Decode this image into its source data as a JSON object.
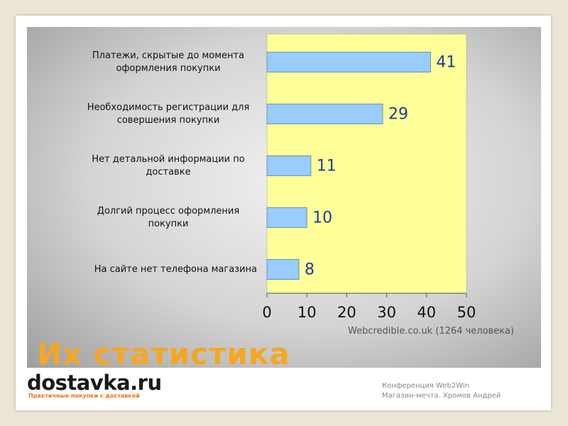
{
  "chart_data": {
    "type": "bar",
    "orientation": "horizontal",
    "title": "Их статистика",
    "source": "Webcredible.co.uk (1264 человека)",
    "categories": [
      "Платежи, скрытые до момента оформления покупки",
      "Необходимость регистрации для совершения покупки",
      "Нет детальной информации по доставке",
      "Долгий процесс оформления покупки",
      "На сайте нет телефона магазина"
    ],
    "values": [
      41,
      29,
      11,
      10,
      8
    ],
    "color": "#99ccff",
    "xlim": [
      0,
      50
    ],
    "xticks": [
      0,
      10,
      20,
      30,
      40,
      50
    ],
    "grid": false
  },
  "footer": {
    "logo": "dostavka.ru",
    "slogan": "Практичные покупки с доставкой",
    "lines": [
      "Конференция Web2Win",
      "Магазин-мечта. Хромов Андрей"
    ]
  }
}
